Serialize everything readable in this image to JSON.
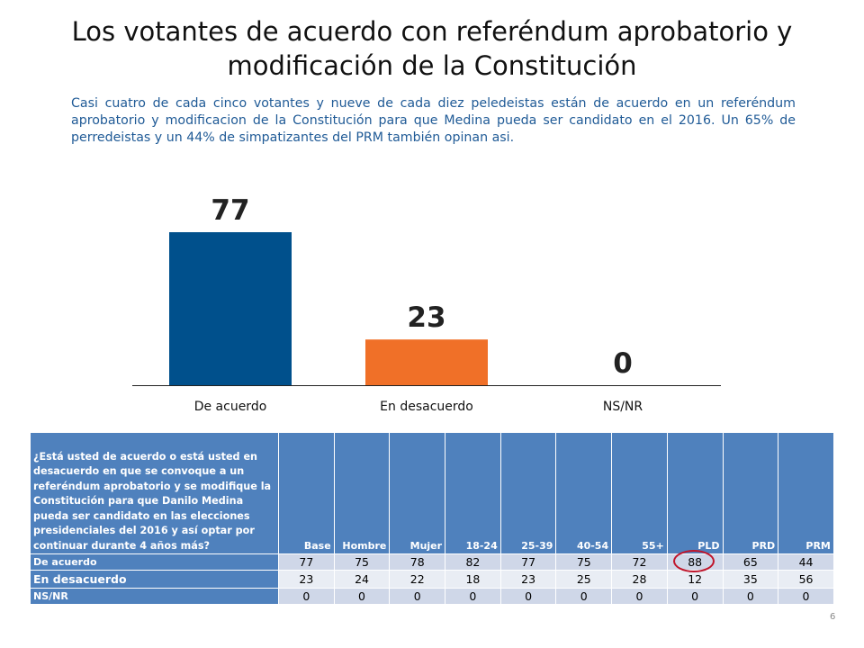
{
  "title": "Los votantes de acuerdo con referéndum aprobatorio y modificación de la Constitución",
  "subtitle": "Casi cuatro de cada cinco votantes y nueve de cada diez peledeistas están de acuerdo en un referéndum aprobatorio y modificacion de la Constitución para que Medina pueda ser candidato en el 2016. Un 65% de perredeistas y un 44% de simpatizantes del PRM también opinan asi.",
  "chart_data": {
    "type": "bar",
    "categories": [
      "De acuerdo",
      "En desacuerdo",
      "NS/NR"
    ],
    "values": [
      77,
      23,
      0
    ],
    "colors": [
      "#00508c",
      "#f07028",
      "#7f7f7f"
    ],
    "ylim": [
      0,
      100
    ],
    "grid": false,
    "legend": "none"
  },
  "table": {
    "question": "¿Está usted de acuerdo o está usted en desacuerdo en que se convoque a un referéndum aprobatorio y se modifique la Constitución para que Danilo Medina pueda ser candidato en las elecciones presidenciales del 2016 y así optar por continuar durante 4 años más?",
    "columns": [
      "Base",
      "Hombre",
      "Mujer",
      "18-24",
      "25-39",
      "40-54",
      "55+",
      "PLD",
      "PRD",
      "PRM"
    ],
    "rows": [
      {
        "label": "De acuerdo",
        "values": [
          "77",
          "75",
          "78",
          "82",
          "77",
          "75",
          "72",
          "88",
          "65",
          "44"
        ]
      },
      {
        "label": "En desacuerdo",
        "values": [
          "23",
          "24",
          "22",
          "18",
          "23",
          "25",
          "28",
          "12",
          "35",
          "56"
        ]
      },
      {
        "label": "NS/NR",
        "values": [
          "0",
          "0",
          "0",
          "0",
          "0",
          "0",
          "0",
          "0",
          "0",
          "0"
        ]
      }
    ],
    "highlight": {
      "row": 0,
      "column": "PLD",
      "color": "#c0142a"
    }
  },
  "page_number": "6"
}
